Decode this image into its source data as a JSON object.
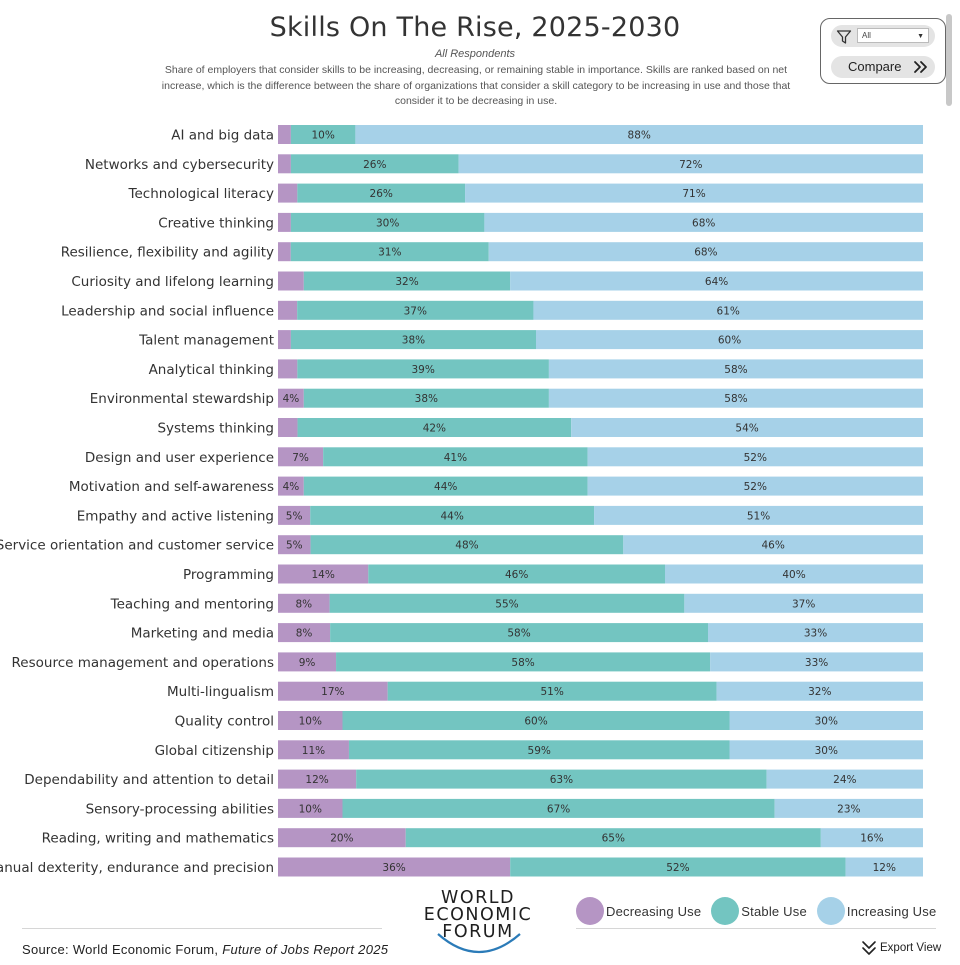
{
  "header": {
    "title": "Skills On The Rise, 2025-2030",
    "subtitle": "All Respondents",
    "description": "Share of employers that consider skills to be increasing, decreasing, or remaining stable in importance. Skills are ranked based on net increase, which is the difference between the share of organizations that consider a skill category to be increasing in use and those that consider it to be decreasing in use."
  },
  "controls": {
    "filter_icon": "filter-icon",
    "filter_value": "All",
    "compare_label": "Compare",
    "compare_icon": "double-chevron-right-icon"
  },
  "colors": {
    "decreasing": "#b595c4",
    "stable": "#73c5c1",
    "increasing": "#a6d1e8"
  },
  "chart_data": {
    "type": "bar",
    "orientation": "horizontal",
    "stacked": true,
    "title": "Skills On The Rise, 2025-2030",
    "xlim": [
      0,
      100
    ],
    "categories": [
      "AI and big data",
      "Networks and cybersecurity",
      "Technological literacy",
      "Creative thinking",
      "Resilience, flexibility and agility",
      "Curiosity and lifelong learning",
      "Leadership and social influence",
      "Talent management",
      "Analytical thinking",
      "Environmental stewardship",
      "Systems thinking",
      "Design and user experience",
      "Motivation and self-awareness",
      "Empathy and active listening",
      "Service orientation and customer service",
      "Programming",
      "Teaching and mentoring",
      "Marketing and media",
      "Resource management and operations",
      "Multi-lingualism",
      "Quality control",
      "Global citizenship",
      "Dependability and attention to detail",
      "Sensory-processing abilities",
      "Reading, writing and mathematics",
      "Manual dexterity, endurance and precision"
    ],
    "series": [
      {
        "name": "Decreasing Use",
        "values": [
          2,
          2,
          3,
          2,
          2,
          4,
          3,
          2,
          3,
          4,
          3,
          7,
          4,
          5,
          5,
          14,
          8,
          8,
          9,
          17,
          10,
          11,
          12,
          10,
          20,
          36
        ]
      },
      {
        "name": "Stable Use",
        "values": [
          10,
          26,
          26,
          30,
          31,
          32,
          37,
          38,
          39,
          38,
          42,
          41,
          44,
          44,
          48,
          46,
          55,
          58,
          58,
          51,
          60,
          59,
          63,
          67,
          65,
          52
        ]
      },
      {
        "name": "Increasing Use",
        "values": [
          88,
          72,
          71,
          68,
          68,
          64,
          61,
          60,
          58,
          58,
          54,
          52,
          52,
          51,
          46,
          40,
          37,
          33,
          33,
          32,
          30,
          30,
          24,
          23,
          16,
          12
        ]
      }
    ],
    "labels": {
      "decreasing": [
        "",
        "",
        "",
        "",
        "",
        "",
        "",
        "",
        "",
        "4%",
        "",
        "7%",
        "4%",
        "5%",
        "5%",
        "14%",
        "8%",
        "8%",
        "9%",
        "17%",
        "10%",
        "11%",
        "12%",
        "10%",
        "20%",
        "36%"
      ],
      "stable": [
        "10%",
        "26%",
        "26%",
        "30%",
        "31%",
        "32%",
        "37%",
        "38%",
        "39%",
        "38%",
        "42%",
        "41%",
        "44%",
        "44%",
        "48%",
        "46%",
        "55%",
        "58%",
        "58%",
        "51%",
        "60%",
        "59%",
        "63%",
        "67%",
        "65%",
        "52%"
      ],
      "increasing": [
        "88%",
        "72%",
        "71%",
        "68%",
        "68%",
        "64%",
        "61%",
        "60%",
        "58%",
        "58%",
        "54%",
        "52%",
        "52%",
        "51%",
        "46%",
        "40%",
        "37%",
        "33%",
        "33%",
        "32%",
        "30%",
        "30%",
        "24%",
        "23%",
        "16%",
        "12%"
      ]
    },
    "legend": [
      "Decreasing Use",
      "Stable Use",
      "Increasing Use"
    ],
    "legend_position": "bottom-right"
  },
  "footer": {
    "source_prefix": "Source: World Economic Forum, ",
    "source_title": "Future of Jobs Report 2025",
    "logo_line1": "WORLD",
    "logo_line2": "ECONOMIC",
    "logo_line3": "FORUM",
    "export_label": "Export View",
    "export_icon": "chevron-down-icon"
  }
}
